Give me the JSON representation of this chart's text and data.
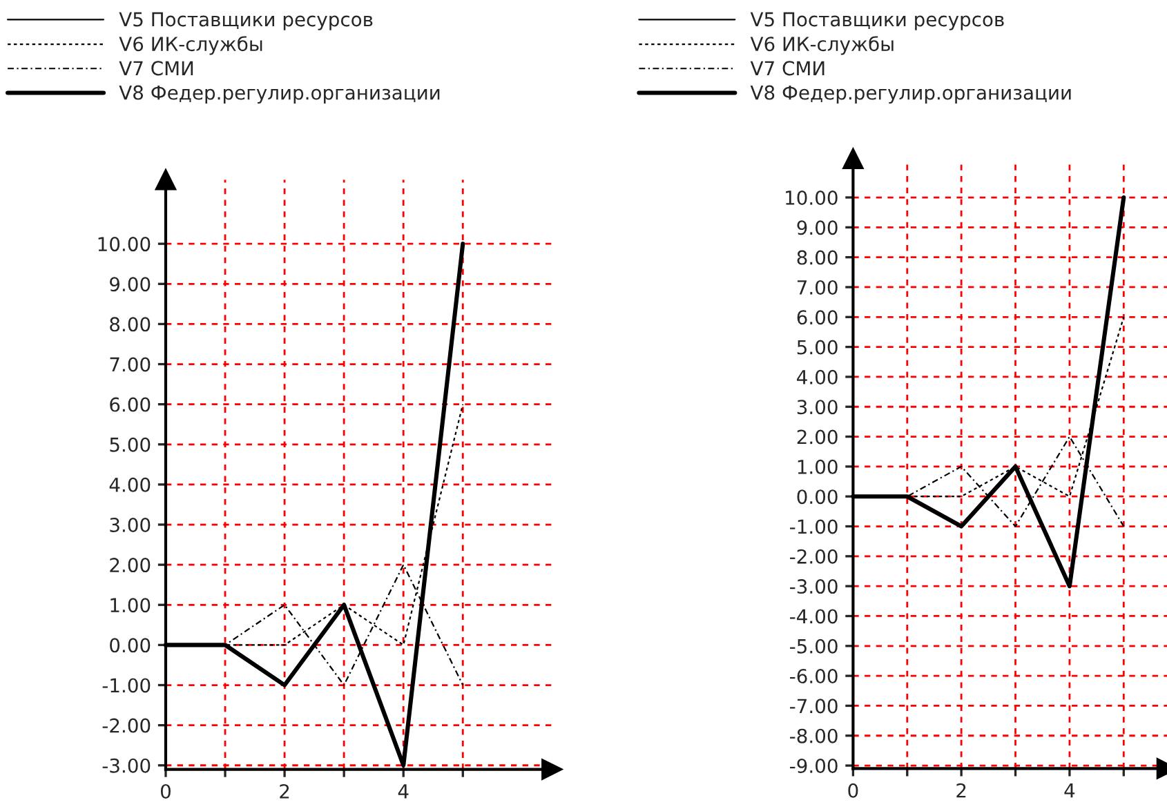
{
  "chart_data": [
    {
      "type": "line",
      "x": [
        0,
        1,
        2,
        3,
        4,
        5
      ],
      "xlim": [
        0,
        6.5
      ],
      "ylim": [
        -3.1,
        11.6
      ],
      "xticks": [
        0,
        {
          "value": 1,
          "label": null
        },
        2,
        {
          "value": 3,
          "label": null
        },
        4,
        {
          "value": 5,
          "label": null
        }
      ],
      "yticks": [
        {
          "value": -3,
          "label": "-3.00"
        },
        {
          "value": -2,
          "label": "-2.00"
        },
        {
          "value": -1,
          "label": "-1.00"
        },
        {
          "value": 0,
          "label": "0.00"
        },
        {
          "value": 1,
          "label": "1.00"
        },
        {
          "value": 2,
          "label": "2.00"
        },
        {
          "value": 3,
          "label": "3.00"
        },
        {
          "value": 4,
          "label": "4.00"
        },
        {
          "value": 5,
          "label": "5.00"
        },
        {
          "value": 6,
          "label": "6.00"
        },
        {
          "value": 7,
          "label": "7.00"
        },
        {
          "value": 8,
          "label": "8.00"
        },
        {
          "value": 9,
          "label": "9.00"
        },
        {
          "value": 10,
          "label": "10.00"
        }
      ],
      "grid": true,
      "legend": "top left",
      "series": [
        {
          "name": "V5 Поставщики ресурсов",
          "color": "#000000",
          "line_style": "solid",
          "values": [
            null,
            null,
            null,
            null,
            null,
            null
          ]
        },
        {
          "name": "V6 ИК-службы",
          "color": "#000000",
          "line_style": "dotted",
          "values": [
            0,
            0,
            0,
            1,
            0,
            6
          ]
        },
        {
          "name": "V7 СМИ",
          "color": "#000000",
          "line_style": "dashed",
          "values": [
            0,
            0,
            1,
            -1,
            2,
            -1
          ]
        },
        {
          "name": "V8 Федер.регулир.организации",
          "color": "#000000",
          "line_style": "solid",
          "values": [
            0,
            0,
            -1,
            1,
            -3,
            10
          ]
        }
      ]
    },
    {
      "type": "line",
      "x": [
        0,
        1,
        2,
        3,
        4,
        5
      ],
      "xlim": [
        0,
        5.8
      ],
      "ylim": [
        -9.1,
        11.3
      ],
      "xticks": [
        0,
        {
          "value": 1,
          "label": null
        },
        2,
        {
          "value": 3,
          "label": null
        },
        4,
        {
          "value": 5,
          "label": null
        }
      ],
      "yticks": [
        {
          "value": -9,
          "label": "-9.00"
        },
        {
          "value": -8,
          "label": "-8.00"
        },
        {
          "value": -7,
          "label": "-7.00"
        },
        {
          "value": -6,
          "label": "-6.00"
        },
        {
          "value": -5,
          "label": "-5.00"
        },
        {
          "value": -4,
          "label": "-4.00"
        },
        {
          "value": -3,
          "label": "-3.00"
        },
        {
          "value": -2,
          "label": "-2.00"
        },
        {
          "value": -1,
          "label": "-1.00"
        },
        {
          "value": 0,
          "label": "0.00"
        },
        {
          "value": 1,
          "label": "1.00"
        },
        {
          "value": 2,
          "label": "2.00"
        },
        {
          "value": 3,
          "label": "3.00"
        },
        {
          "value": 4,
          "label": "4.00"
        },
        {
          "value": 5,
          "label": "5.00"
        },
        {
          "value": 6,
          "label": "6.00"
        },
        {
          "value": 7,
          "label": "7.00"
        },
        {
          "value": 8,
          "label": "8.00"
        },
        {
          "value": 9,
          "label": "9.00"
        },
        {
          "value": 10,
          "label": "10.00"
        }
      ],
      "grid": true,
      "legend": "top left",
      "series": [
        {
          "name": "V5 Поставщики ресурсов",
          "color": "#000000",
          "line_style": "solid",
          "values": [
            null,
            null,
            null,
            null,
            null,
            null
          ]
        },
        {
          "name": "V6 ИК-службы",
          "color": "#000000",
          "line_style": "dotted",
          "values": [
            0,
            0,
            0,
            1,
            0,
            6
          ]
        },
        {
          "name": "V7 СМИ",
          "color": "#000000",
          "line_style": "dashed",
          "values": [
            0,
            0,
            1,
            -1,
            2,
            -1
          ]
        },
        {
          "name": "V8 Федер.регулир.организации",
          "color": "#000000",
          "line_style": "solid",
          "values": [
            0,
            0,
            -1,
            1,
            -3,
            10
          ]
        }
      ]
    }
  ]
}
